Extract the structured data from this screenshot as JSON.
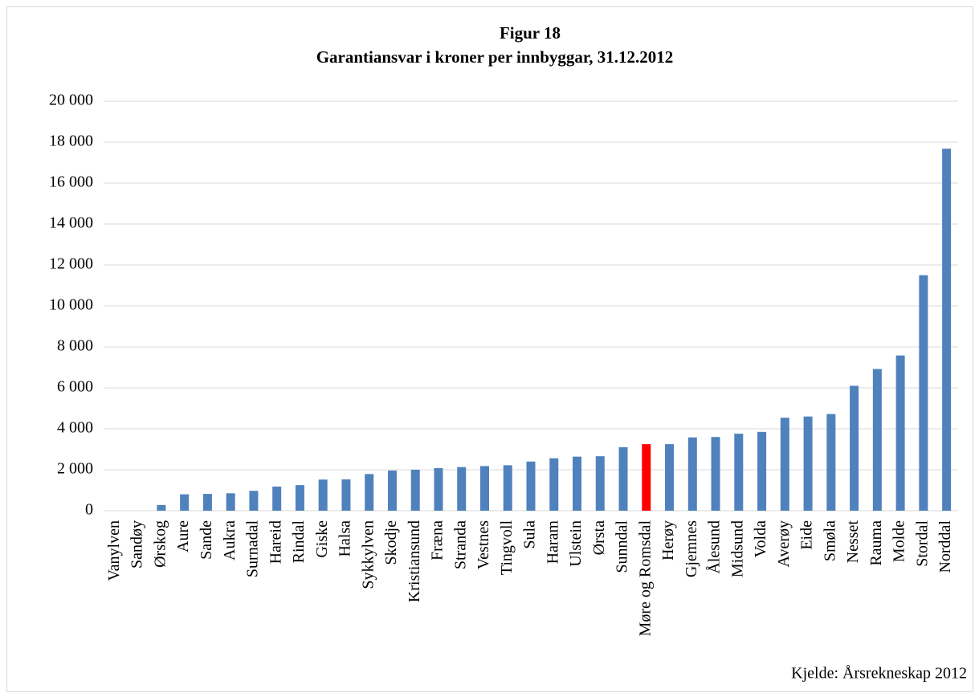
{
  "chart_data": {
    "type": "bar",
    "title": "Figur 18",
    "subtitle": "Garantiansvar i kroner per innbyggar, 31.12.2012",
    "source": "Kjelde: Årsrekneskap 2012",
    "categories": [
      "Vanylven",
      "Sandøy",
      "Ørskog",
      "Aure",
      "Sande",
      "Aukra",
      "Surnadal",
      "Hareid",
      "Rindal",
      "Giske",
      "Halsa",
      "Sykkylven",
      "Skodje",
      "Kristiansund",
      "Fræna",
      "Stranda",
      "Vestnes",
      "Tingvoll",
      "Sula",
      "Haram",
      "Ulstein",
      "Ørsta",
      "Sunndal",
      "Møre og Romsdal",
      "Herøy",
      "Gjemnes",
      "Ålesund",
      "Midsund",
      "Volda",
      "Averøy",
      "Eide",
      "Smøla",
      "Nesset",
      "Rauma",
      "Molde",
      "Stordal",
      "Norddal"
    ],
    "values": [
      0,
      0,
      280,
      800,
      820,
      850,
      970,
      1180,
      1250,
      1520,
      1530,
      1790,
      1960,
      2000,
      2080,
      2130,
      2180,
      2220,
      2400,
      2560,
      2640,
      2660,
      3100,
      3250,
      3250,
      3580,
      3600,
      3760,
      3850,
      4540,
      4600,
      4720,
      6100,
      6920,
      7580,
      11500,
      17680
    ],
    "colors": [
      "#4f81bd",
      "#4f81bd",
      "#4f81bd",
      "#4f81bd",
      "#4f81bd",
      "#4f81bd",
      "#4f81bd",
      "#4f81bd",
      "#4f81bd",
      "#4f81bd",
      "#4f81bd",
      "#4f81bd",
      "#4f81bd",
      "#4f81bd",
      "#4f81bd",
      "#4f81bd",
      "#4f81bd",
      "#4f81bd",
      "#4f81bd",
      "#4f81bd",
      "#4f81bd",
      "#4f81bd",
      "#4f81bd",
      "#ff0000",
      "#4f81bd",
      "#4f81bd",
      "#4f81bd",
      "#4f81bd",
      "#4f81bd",
      "#4f81bd",
      "#4f81bd",
      "#4f81bd",
      "#4f81bd",
      "#4f81bd",
      "#4f81bd",
      "#4f81bd",
      "#4f81bd"
    ],
    "ylim": [
      0,
      20000
    ],
    "yticks": [
      0,
      {
        "value": 2000,
        "label": "2 000"
      },
      {
        "value": 4000,
        "label": "4 000"
      },
      {
        "value": 6000,
        "label": "6 000"
      },
      {
        "value": 8000,
        "label": "8 000"
      },
      {
        "value": 10000,
        "label": "10 000"
      },
      {
        "value": 12000,
        "label": "12 000"
      },
      {
        "value": 14000,
        "label": "14 000"
      },
      {
        "value": 16000,
        "label": "16 000"
      },
      {
        "value": 18000,
        "label": "18 000"
      },
      {
        "value": 20000,
        "label": "20 000"
      }
    ],
    "grid": true
  }
}
